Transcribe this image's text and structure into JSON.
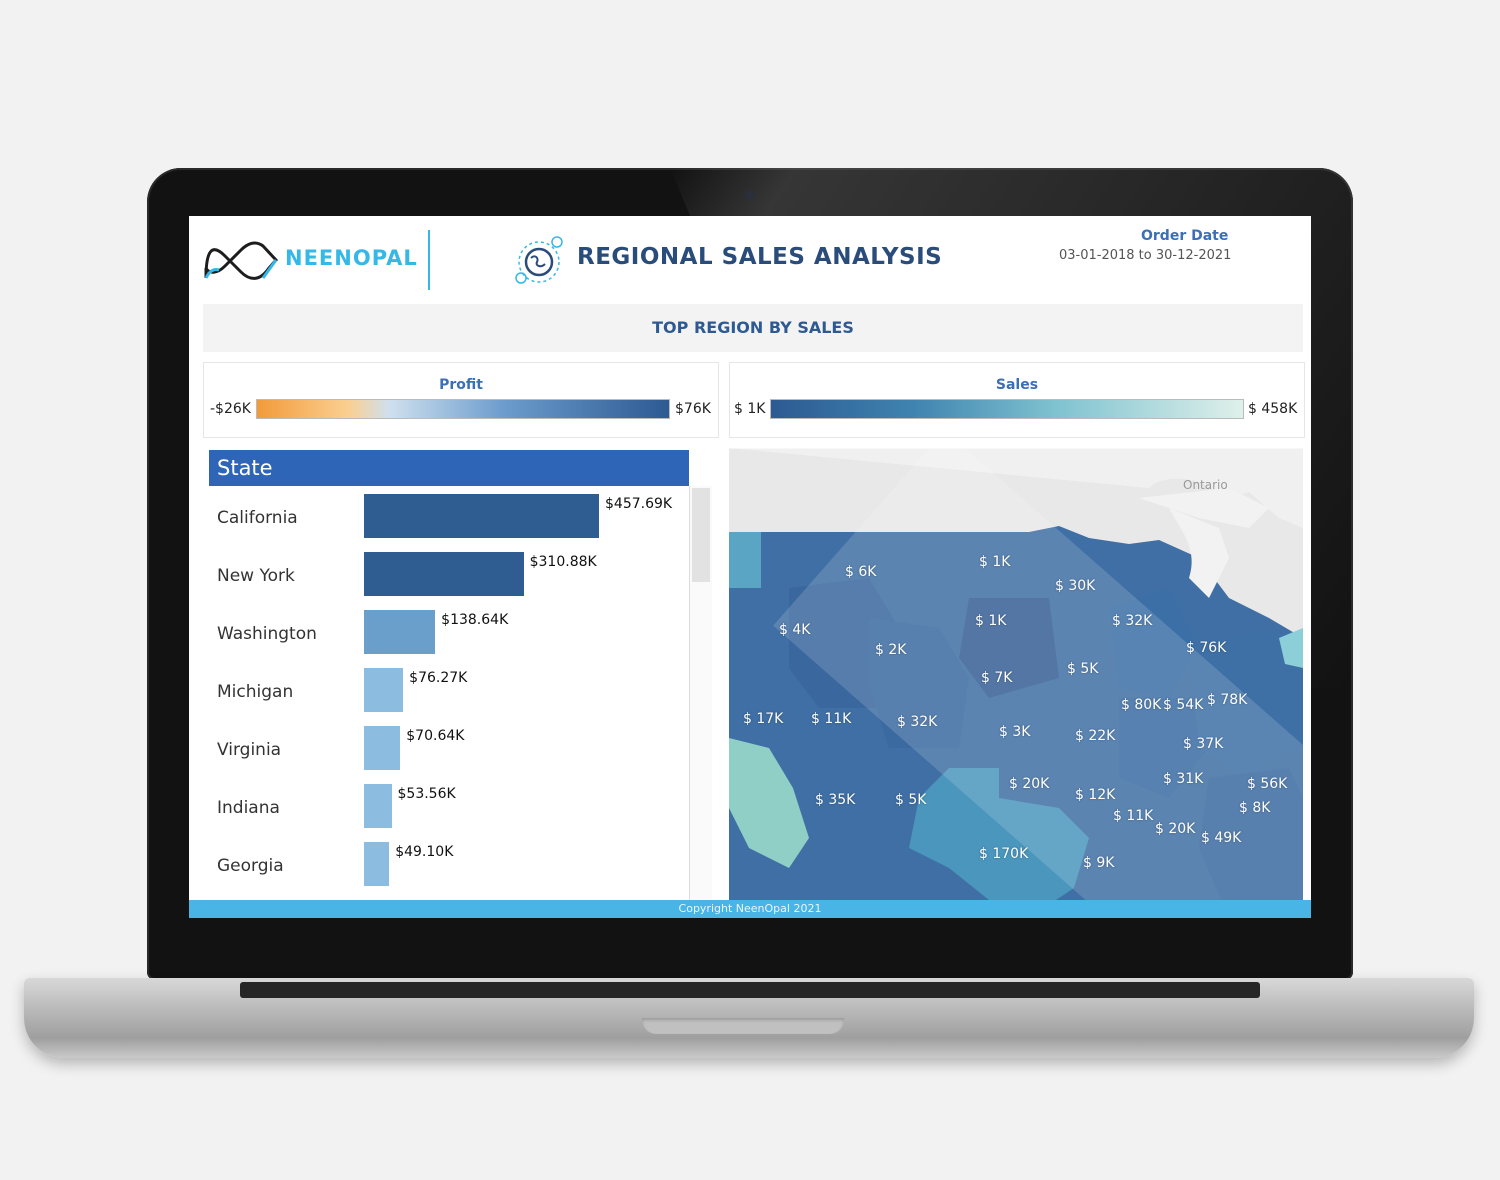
{
  "brand": {
    "name": "NEENOPAL"
  },
  "header": {
    "title": "REGIONAL SALES ANALYSIS",
    "order_date_label": "Order Date",
    "order_date_range": "03-01-2018 to 30-12-2021"
  },
  "banner": {
    "text": "TOP REGION BY SALES"
  },
  "profit_legend": {
    "title": "Profit",
    "min": "-$26K",
    "max": "$76K"
  },
  "sales_legend": {
    "title": "Sales",
    "min": "$ 1K",
    "max": "$ 458K"
  },
  "state_panel": {
    "header": "State",
    "rows": [
      {
        "name": "California",
        "value_label": "$457.69K",
        "value": 457.69
      },
      {
        "name": "New York",
        "value_label": "$310.88K",
        "value": 310.88
      },
      {
        "name": "Washington",
        "value_label": "$138.64K",
        "value": 138.64
      },
      {
        "name": "Michigan",
        "value_label": "$76.27K",
        "value": 76.27
      },
      {
        "name": "Virginia",
        "value_label": "$70.64K",
        "value": 70.64
      },
      {
        "name": "Indiana",
        "value_label": "$53.56K",
        "value": 53.56
      },
      {
        "name": "Georgia",
        "value_label": "$49.10K",
        "value": 49.1
      }
    ]
  },
  "map": {
    "region_label": "Ontario",
    "labels": [
      "$ 6K",
      "$ 1K",
      "$ 30K",
      "$ 1K",
      "$ 32K",
      "$ 4K",
      "$ 2K",
      "$ 76K",
      "$ 7K",
      "$ 5K",
      "$ 80K",
      "$ 54K",
      "$ 78K",
      "$ 17K",
      "$ 11K",
      "$ 32K",
      "$ 3K",
      "$ 22K",
      "$ 37K",
      "$ 31K",
      "$ 56K",
      "$ 20K",
      "$ 12K",
      "$ 35K",
      "$ 5K",
      "$ 11K",
      "$ 20K",
      "$ 8K",
      "$ 49K",
      "$ 170K",
      "$ 9K"
    ]
  },
  "footer": {
    "text": "Copyright NeenOpal 2021"
  },
  "colors": {
    "accent": "#35b8e8",
    "header_blue": "#2f65b7",
    "title": "#2a4c7a"
  }
}
